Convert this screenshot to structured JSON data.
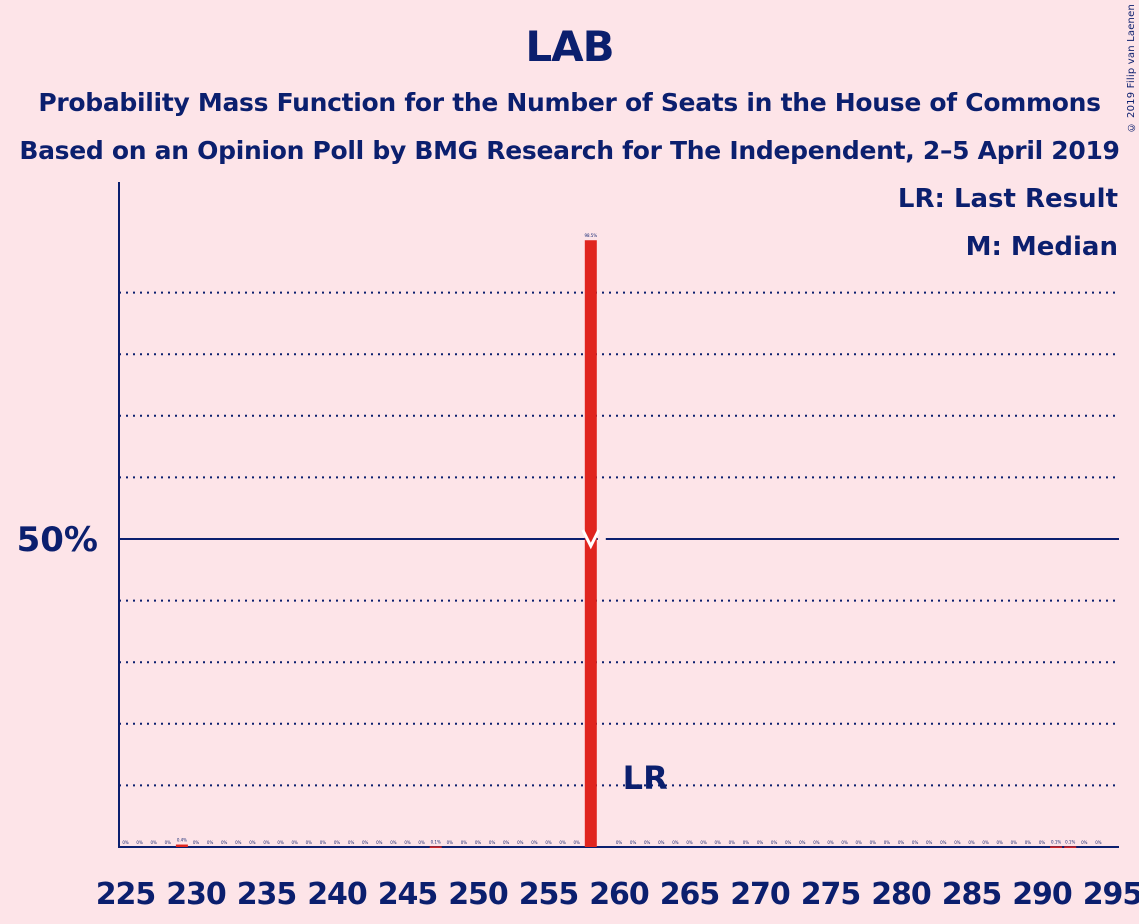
{
  "title": "LAB",
  "subtitle1": "Probability Mass Function for the Number of Seats in the House of Commons",
  "subtitle2": "Based on an Opinion Poll by BMG Research for The Independent, 2–5 April 2019",
  "legend": {
    "lr": "LR: Last Result",
    "m": "M: Median"
  },
  "copyright": "© 2019 Filip van Laenen",
  "colors": {
    "background": "#fde4e8",
    "text": "#0b1f6e",
    "bar": "#e0251f"
  },
  "chart_data": {
    "type": "bar",
    "x": [
      225,
      226,
      227,
      228,
      229,
      230,
      231,
      232,
      233,
      234,
      235,
      236,
      237,
      238,
      239,
      240,
      241,
      242,
      243,
      244,
      245,
      246,
      247,
      248,
      249,
      250,
      251,
      252,
      253,
      254,
      255,
      256,
      257,
      258,
      259,
      260,
      261,
      262,
      263,
      264,
      265,
      266,
      267,
      268,
      269,
      270,
      271,
      272,
      273,
      274,
      275,
      276,
      277,
      278,
      279,
      280,
      281,
      282,
      283,
      284,
      285,
      286,
      287,
      288,
      289,
      290,
      291,
      292,
      293,
      294,
      295
    ],
    "values": [
      0,
      0,
      0,
      0,
      0.4,
      0,
      0,
      0,
      0,
      0,
      0,
      0,
      0,
      0,
      0,
      0,
      0,
      0,
      0,
      0,
      0,
      0,
      0.1,
      0,
      0,
      0,
      0,
      0,
      0,
      0,
      0,
      0,
      0,
      98.5,
      0,
      0,
      0,
      0,
      0,
      0,
      0,
      0,
      0,
      0,
      0,
      0,
      0,
      0,
      0,
      0,
      0,
      0,
      0,
      0,
      0,
      0,
      0,
      0,
      0,
      0,
      0,
      0,
      0,
      0,
      0,
      0,
      0.1,
      0.1,
      0,
      0,
      0
    ],
    "bar_labels": [
      "0%",
      "0%",
      "0%",
      "0%",
      "0.4%",
      "0%",
      "0%",
      "0%",
      "0%",
      "0%",
      "0%",
      "0%",
      "0%",
      "0%",
      "0%",
      "0%",
      "0%",
      "0%",
      "0%",
      "0%",
      "0%",
      "0%",
      "0.1%",
      "0%",
      "0%",
      "0%",
      "0%",
      "0%",
      "0%",
      "0%",
      "0%",
      "0%",
      "0%",
      "98.5%",
      "",
      "0%",
      "0%",
      "0%",
      "0%",
      "0%",
      "0%",
      "0%",
      "0%",
      "0%",
      "0%",
      "0%",
      "0%",
      "0%",
      "0%",
      "0%",
      "0%",
      "0%",
      "0%",
      "0%",
      "0%",
      "0%",
      "0%",
      "0%",
      "0%",
      "0%",
      "0%",
      "0%",
      "0%",
      "0%",
      "0%",
      "0%",
      "0.1%",
      "0.1%",
      "0%",
      "0%",
      ""
    ],
    "x_ticks": [
      225,
      230,
      235,
      240,
      245,
      250,
      255,
      260,
      265,
      270,
      275,
      280,
      285,
      290,
      295
    ],
    "ylim": [
      0,
      100
    ],
    "y_ticks_labeled": [
      {
        "value": 50,
        "label": "50%"
      }
    ],
    "gridlines": [
      10,
      20,
      30,
      40,
      60,
      70,
      80,
      90
    ],
    "median": 258,
    "last_result": 262,
    "lr_label": "LR",
    "median_mark": 50
  }
}
